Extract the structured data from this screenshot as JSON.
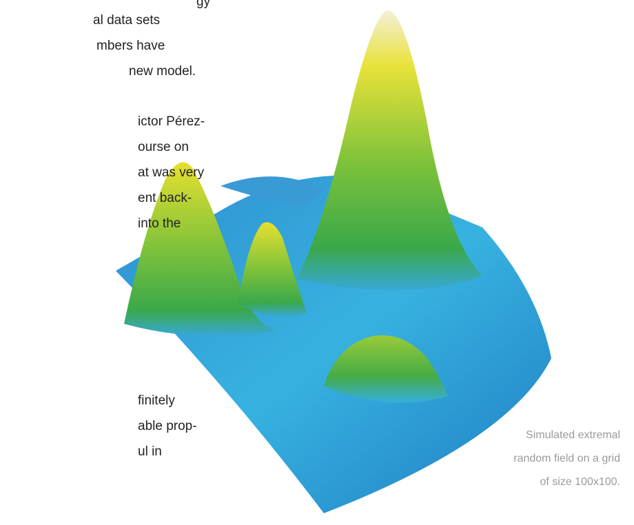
{
  "body_text": {
    "paragraphs": [
      [
        "gy",
        "al data sets",
        "mbers have",
        "new model."
      ],
      [
        "ictor Pérez-",
        "ourse on",
        "at was very",
        "ent back-",
        "into the"
      ],
      [
        "finitely",
        "able prop-",
        "ul in"
      ]
    ]
  },
  "figure": {
    "caption": [
      "Simulated extremal",
      "random field on a grid",
      "of size 100x100."
    ]
  }
}
